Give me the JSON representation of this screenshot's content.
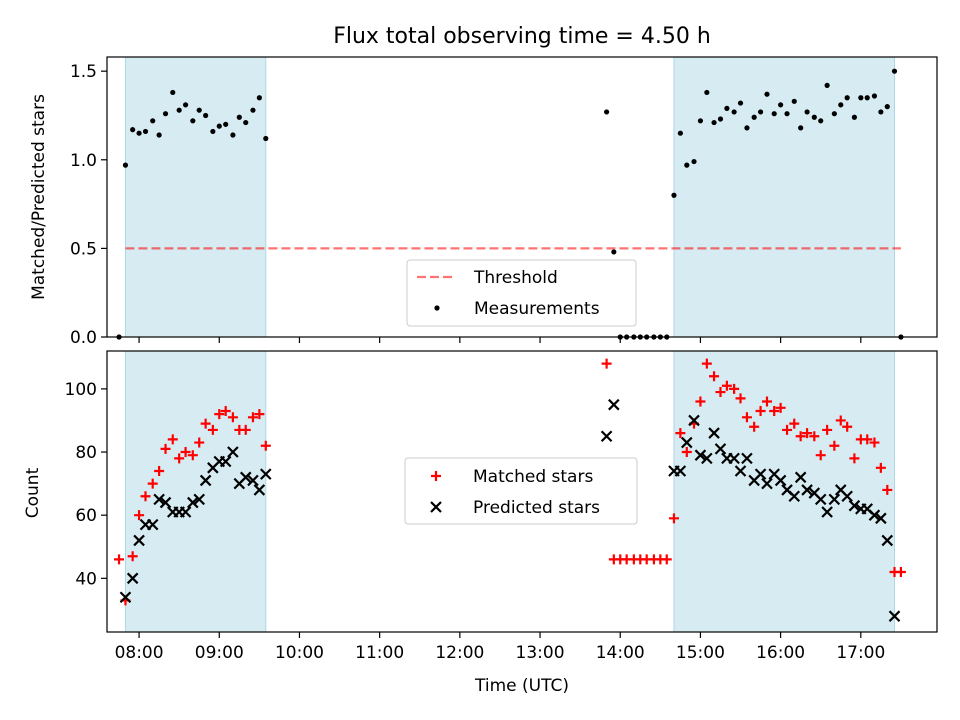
{
  "title": "Flux total observing time = 4.50 h",
  "colors": {
    "shade": "#add8e6",
    "threshold": "#ff0000",
    "measurement": "#000000",
    "matched": "#ff0000",
    "predicted": "#000000"
  },
  "chart_data": [
    {
      "type": "scatter",
      "ylabel": "Matched/Predicted stars",
      "xlim": [
        7.6,
        17.95
      ],
      "ylim": [
        0,
        1.58
      ],
      "yticks": [
        0.0,
        0.5,
        1.0,
        1.5
      ],
      "ytick_labels": [
        "0.0",
        "0.5",
        "1.0",
        "1.5"
      ],
      "grid": false,
      "legend_position": "lower-center",
      "shaded_spans": [
        [
          7.83,
          9.58
        ],
        [
          14.67,
          17.42
        ]
      ],
      "threshold": {
        "name": "Threshold",
        "y": 0.5,
        "x": [
          7.83,
          17.5
        ]
      },
      "series": [
        {
          "name": "Measurements",
          "points": [
            [
              7.75,
              0.0
            ],
            [
              7.83,
              0.97
            ],
            [
              7.92,
              1.17
            ],
            [
              8.0,
              1.15
            ],
            [
              8.08,
              1.16
            ],
            [
              8.17,
              1.22
            ],
            [
              8.25,
              1.14
            ],
            [
              8.33,
              1.26
            ],
            [
              8.42,
              1.38
            ],
            [
              8.5,
              1.28
            ],
            [
              8.58,
              1.31
            ],
            [
              8.67,
              1.22
            ],
            [
              8.75,
              1.28
            ],
            [
              8.83,
              1.25
            ],
            [
              8.92,
              1.16
            ],
            [
              9.0,
              1.19
            ],
            [
              9.08,
              1.2
            ],
            [
              9.17,
              1.14
            ],
            [
              9.25,
              1.24
            ],
            [
              9.33,
              1.21
            ],
            [
              9.42,
              1.28
            ],
            [
              9.5,
              1.35
            ],
            [
              9.58,
              1.12
            ],
            [
              13.83,
              1.27
            ],
            [
              13.92,
              0.48
            ],
            [
              14.0,
              0.0
            ],
            [
              14.08,
              0.0
            ],
            [
              14.17,
              0.0
            ],
            [
              14.25,
              0.0
            ],
            [
              14.33,
              0.0
            ],
            [
              14.42,
              0.0
            ],
            [
              14.5,
              0.0
            ],
            [
              14.58,
              0.0
            ],
            [
              14.67,
              0.8
            ],
            [
              14.75,
              1.15
            ],
            [
              14.83,
              0.97
            ],
            [
              14.92,
              0.99
            ],
            [
              15.0,
              1.22
            ],
            [
              15.08,
              1.38
            ],
            [
              15.17,
              1.21
            ],
            [
              15.25,
              1.23
            ],
            [
              15.33,
              1.29
            ],
            [
              15.42,
              1.27
            ],
            [
              15.5,
              1.32
            ],
            [
              15.58,
              1.18
            ],
            [
              15.67,
              1.24
            ],
            [
              15.75,
              1.27
            ],
            [
              15.83,
              1.37
            ],
            [
              15.92,
              1.26
            ],
            [
              16.0,
              1.31
            ],
            [
              16.08,
              1.26
            ],
            [
              16.17,
              1.33
            ],
            [
              16.25,
              1.18
            ],
            [
              16.33,
              1.27
            ],
            [
              16.42,
              1.24
            ],
            [
              16.5,
              1.22
            ],
            [
              16.58,
              1.42
            ],
            [
              16.67,
              1.26
            ],
            [
              16.75,
              1.31
            ],
            [
              16.83,
              1.35
            ],
            [
              16.92,
              1.24
            ],
            [
              17.0,
              1.35
            ],
            [
              17.08,
              1.35
            ],
            [
              17.17,
              1.36
            ],
            [
              17.25,
              1.27
            ],
            [
              17.33,
              1.3
            ],
            [
              17.42,
              1.5
            ],
            [
              17.5,
              0.0
            ]
          ]
        }
      ]
    },
    {
      "type": "scatter",
      "ylabel": "Count",
      "xlabel": "Time (UTC)",
      "xlim": [
        7.6,
        17.95
      ],
      "ylim": [
        23,
        112
      ],
      "xticks": [
        8,
        9,
        10,
        11,
        12,
        13,
        14,
        15,
        16,
        17
      ],
      "xtick_labels": [
        "08:00",
        "09:00",
        "10:00",
        "11:00",
        "12:00",
        "13:00",
        "14:00",
        "15:00",
        "16:00",
        "17:00"
      ],
      "yticks": [
        40,
        60,
        80,
        100
      ],
      "ytick_labels": [
        "40",
        "60",
        "80",
        "100"
      ],
      "grid": false,
      "legend_position": "center",
      "shaded_spans": [
        [
          7.83,
          9.58
        ],
        [
          14.67,
          17.42
        ]
      ],
      "series": [
        {
          "name": "Matched stars",
          "marker": "plus",
          "points": [
            [
              7.75,
              46
            ],
            [
              7.83,
              33
            ],
            [
              7.92,
              47
            ],
            [
              8.0,
              60
            ],
            [
              8.08,
              66
            ],
            [
              8.17,
              70
            ],
            [
              8.25,
              74
            ],
            [
              8.33,
              81
            ],
            [
              8.42,
              84
            ],
            [
              8.5,
              78
            ],
            [
              8.58,
              80
            ],
            [
              8.67,
              79
            ],
            [
              8.75,
              83
            ],
            [
              8.83,
              89
            ],
            [
              8.92,
              87
            ],
            [
              9.0,
              92
            ],
            [
              9.08,
              93
            ],
            [
              9.17,
              91
            ],
            [
              9.25,
              87
            ],
            [
              9.33,
              87
            ],
            [
              9.42,
              91
            ],
            [
              9.5,
              92
            ],
            [
              9.58,
              82
            ],
            [
              13.83,
              108
            ],
            [
              13.92,
              46
            ],
            [
              14.0,
              46
            ],
            [
              14.08,
              46
            ],
            [
              14.17,
              46
            ],
            [
              14.25,
              46
            ],
            [
              14.33,
              46
            ],
            [
              14.42,
              46
            ],
            [
              14.5,
              46
            ],
            [
              14.58,
              46
            ],
            [
              14.67,
              59
            ],
            [
              14.75,
              86
            ],
            [
              14.83,
              80
            ],
            [
              14.92,
              89
            ],
            [
              15.0,
              96
            ],
            [
              15.08,
              108
            ],
            [
              15.17,
              104
            ],
            [
              15.25,
              99
            ],
            [
              15.33,
              101
            ],
            [
              15.42,
              100
            ],
            [
              15.5,
              97
            ],
            [
              15.58,
              91
            ],
            [
              15.67,
              88
            ],
            [
              15.75,
              93
            ],
            [
              15.83,
              96
            ],
            [
              15.92,
              93
            ],
            [
              16.0,
              94
            ],
            [
              16.08,
              87
            ],
            [
              16.17,
              89
            ],
            [
              16.25,
              85
            ],
            [
              16.33,
              86
            ],
            [
              16.42,
              85
            ],
            [
              16.5,
              79
            ],
            [
              16.58,
              87
            ],
            [
              16.67,
              82
            ],
            [
              16.75,
              90
            ],
            [
              16.83,
              88
            ],
            [
              16.92,
              78
            ],
            [
              17.0,
              84
            ],
            [
              17.08,
              84
            ],
            [
              17.17,
              83
            ],
            [
              17.25,
              75
            ],
            [
              17.33,
              68
            ],
            [
              17.42,
              42
            ],
            [
              17.5,
              42
            ]
          ]
        },
        {
          "name": "Predicted stars",
          "marker": "x",
          "points": [
            [
              7.83,
              34
            ],
            [
              7.92,
              40
            ],
            [
              8.0,
              52
            ],
            [
              8.08,
              57
            ],
            [
              8.17,
              57
            ],
            [
              8.25,
              65
            ],
            [
              8.33,
              64
            ],
            [
              8.42,
              61
            ],
            [
              8.5,
              61
            ],
            [
              8.58,
              61
            ],
            [
              8.67,
              64
            ],
            [
              8.75,
              65
            ],
            [
              8.83,
              71
            ],
            [
              8.92,
              75
            ],
            [
              9.0,
              77
            ],
            [
              9.08,
              77
            ],
            [
              9.17,
              80
            ],
            [
              9.25,
              70
            ],
            [
              9.33,
              72
            ],
            [
              9.42,
              71
            ],
            [
              9.5,
              68
            ],
            [
              9.58,
              73
            ],
            [
              13.83,
              85
            ],
            [
              13.92,
              95
            ],
            [
              14.67,
              74
            ],
            [
              14.75,
              74
            ],
            [
              14.83,
              83
            ],
            [
              14.92,
              90
            ],
            [
              15.0,
              79
            ],
            [
              15.08,
              78
            ],
            [
              15.17,
              86
            ],
            [
              15.25,
              81
            ],
            [
              15.33,
              78
            ],
            [
              15.42,
              78
            ],
            [
              15.5,
              74
            ],
            [
              15.58,
              78
            ],
            [
              15.67,
              71
            ],
            [
              15.75,
              73
            ],
            [
              15.83,
              70
            ],
            [
              15.92,
              73
            ],
            [
              16.0,
              71
            ],
            [
              16.08,
              68
            ],
            [
              16.17,
              66
            ],
            [
              16.25,
              72
            ],
            [
              16.33,
              68
            ],
            [
              16.42,
              67
            ],
            [
              16.5,
              65
            ],
            [
              16.58,
              61
            ],
            [
              16.67,
              65
            ],
            [
              16.75,
              68
            ],
            [
              16.83,
              66
            ],
            [
              16.92,
              63
            ],
            [
              17.0,
              62
            ],
            [
              17.08,
              62
            ],
            [
              17.17,
              60
            ],
            [
              17.25,
              59
            ],
            [
              17.33,
              52
            ],
            [
              17.42,
              28
            ]
          ]
        }
      ]
    }
  ]
}
